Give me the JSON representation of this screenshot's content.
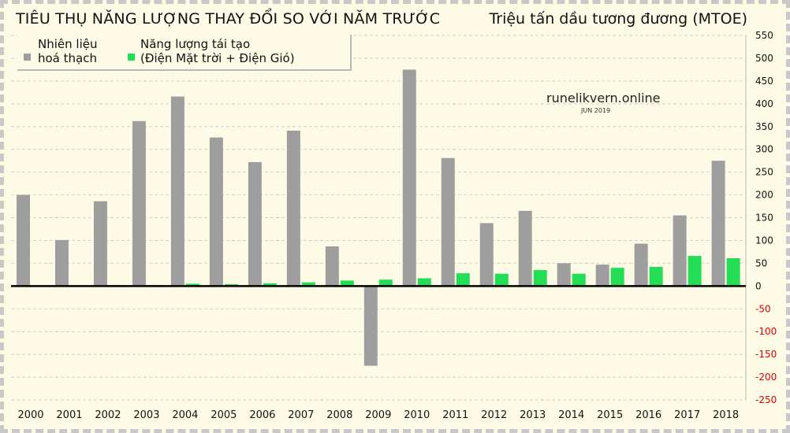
{
  "header": {
    "title": "TIÊU THỤ NĂNG LƯỢNG THAY ĐỔI SO VỚI NĂM TRƯỚC",
    "unit": "Triệu tấn dầu tương đương (MTOE)"
  },
  "legend": {
    "fossil_label_line1": "Nhiên liệu",
    "fossil_label_line2": "hoá thạch",
    "renew_label_line1": "Năng lượng tái tạo",
    "renew_label_line2": "(Điện Mặt trời + Điện Gió)"
  },
  "watermark": {
    "site": "runelikvern.online",
    "date": "JUN 2019"
  },
  "colors": {
    "fossil": "#9e9e9e",
    "renewables": "#22dd55",
    "negative_tick": "#e00000",
    "positive_tick": "#111111",
    "background": "#fdfbe6"
  },
  "chart_data": {
    "type": "bar",
    "title": "TIÊU THỤ NĂNG LƯỢNG THAY ĐỔI SO VỚI NĂM TRƯỚC",
    "ylabel": "Triệu tấn dầu tương đương (MTOE)",
    "xlabel": "",
    "ylim": [
      -250,
      550
    ],
    "y_ticks": [
      550,
      500,
      450,
      400,
      350,
      300,
      250,
      200,
      150,
      100,
      50,
      0,
      -50,
      -100,
      -150,
      -200,
      -250
    ],
    "y_axis_side": "right",
    "grid": "horizontal dashed",
    "legend_position": "top-left",
    "categories": [
      "2000",
      "2001",
      "2002",
      "2003",
      "2004",
      "2005",
      "2006",
      "2007",
      "2008",
      "2009",
      "2010",
      "2011",
      "2012",
      "2013",
      "2014",
      "2015",
      "2016",
      "2017",
      "2018"
    ],
    "series": [
      {
        "name": "Nhiên liệu hoá thạch",
        "color": "#9e9e9e",
        "values": [
          200,
          101,
          186,
          362,
          416,
          326,
          272,
          341,
          87,
          -175,
          475,
          281,
          138,
          165,
          50,
          47,
          93,
          155,
          275
        ]
      },
      {
        "name": "Năng lượng tái tạo (Điện Mặt trời + Điện Gió)",
        "color": "#22dd55",
        "values": [
          1,
          1,
          2,
          2,
          5,
          4,
          6,
          8,
          12,
          14,
          17,
          28,
          27,
          35,
          27,
          40,
          42,
          66,
          61
        ]
      }
    ]
  }
}
